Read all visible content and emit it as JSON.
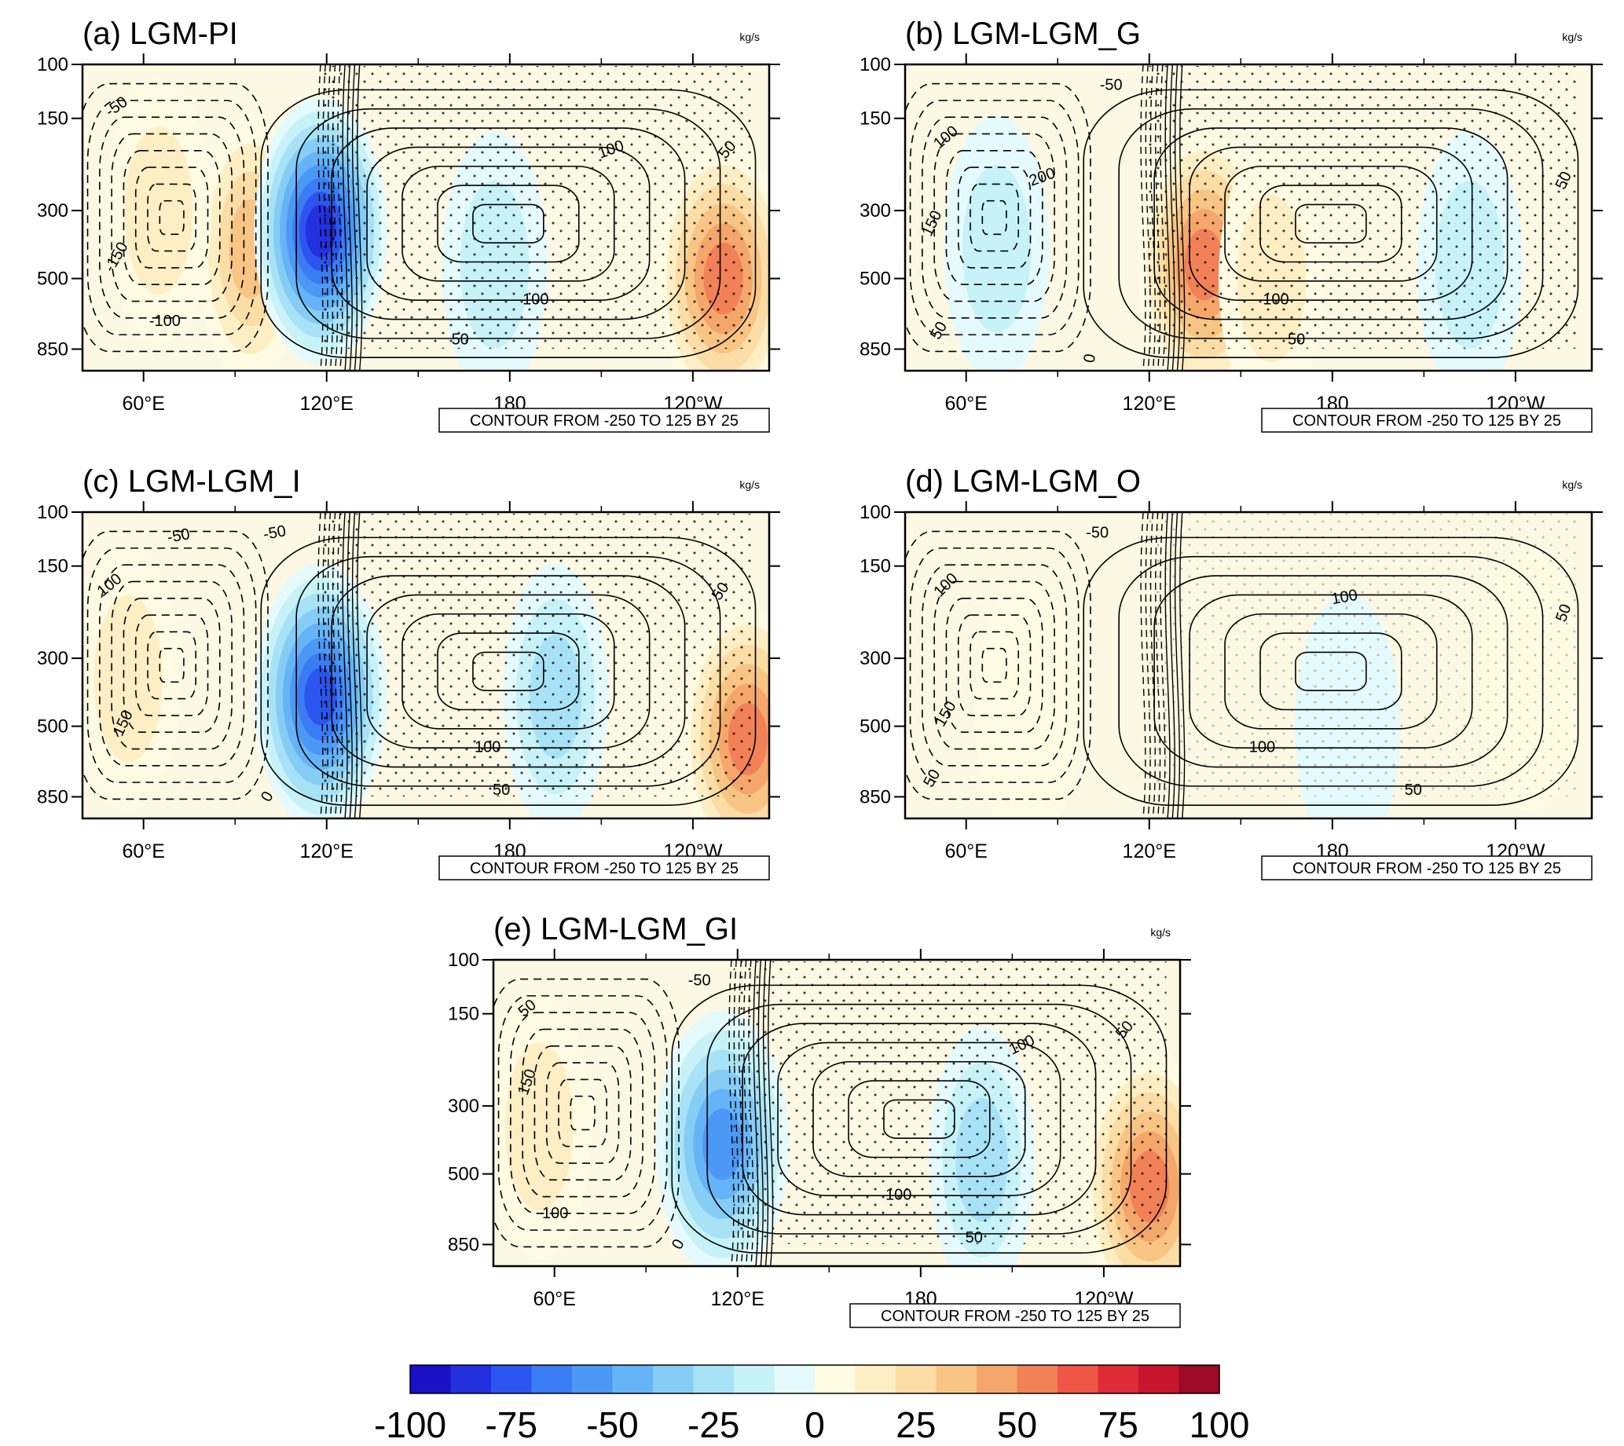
{
  "colors": {
    "scale": [
      "#1a10c8",
      "#2330e0",
      "#2b55ee",
      "#3a7cf3",
      "#4c98f5",
      "#66b4f7",
      "#86cdf6",
      "#a8e2f6",
      "#c6f2f8",
      "#e4fafc",
      "#fffbe3",
      "#fdeec4",
      "#fbdda5",
      "#f8c584",
      "#f5a66a",
      "#f28158",
      "#ee5545",
      "#e02a35",
      "#c8152e",
      "#9c0a25"
    ],
    "contour": "#000000"
  },
  "chart_data": [
    {
      "type": "heatmap",
      "title": "(a) LGM-PI",
      "units": "kg/s",
      "x_ticks": [
        "60°E",
        "120°E",
        "180",
        "120°W"
      ],
      "y_ticks": [
        "100",
        "150",
        "300",
        "500",
        "850"
      ],
      "x_range_degE": [
        40,
        265
      ],
      "ylabel": "",
      "contour_note": "CONTOUR FROM -250 TO 125 BY 25",
      "contour_labels": [
        "-50",
        "-150",
        "-100",
        "100",
        "50",
        "100",
        "50"
      ],
      "shading_features": [
        {
          "lon": 95,
          "p": 400,
          "value": 40
        },
        {
          "lon": 118,
          "p": 350,
          "value": -85
        },
        {
          "lon": 175,
          "p": 450,
          "value": -20
        },
        {
          "lon": 250,
          "p": 500,
          "value": 55
        },
        {
          "lon": 65,
          "p": 300,
          "value": 15
        }
      ]
    },
    {
      "type": "heatmap",
      "title": "(b) LGM-LGM_G",
      "units": "kg/s",
      "x_ticks": [
        "60°E",
        "120°E",
        "180",
        "120°W"
      ],
      "y_ticks": [
        "100",
        "150",
        "300",
        "500",
        "850"
      ],
      "x_range_degE": [
        40,
        265
      ],
      "ylabel": "",
      "contour_note": "CONTOUR FROM -250 TO 125 BY 25",
      "contour_labels": [
        "-50",
        "100",
        "200",
        "150",
        "50",
        "0",
        "100",
        "50",
        "50"
      ],
      "shading_features": [
        {
          "lon": 70,
          "p": 400,
          "value": -20
        },
        {
          "lon": 138,
          "p": 450,
          "value": 55
        },
        {
          "lon": 160,
          "p": 500,
          "value": 20
        },
        {
          "lon": 225,
          "p": 450,
          "value": -20
        }
      ]
    },
    {
      "type": "heatmap",
      "title": "(c) LGM-LGM_I",
      "units": "kg/s",
      "x_ticks": [
        "60°E",
        "120°E",
        "180",
        "120°W"
      ],
      "y_ticks": [
        "100",
        "150",
        "300",
        "500",
        "850"
      ],
      "x_range_degE": [
        40,
        265
      ],
      "ylabel": "",
      "contour_note": "CONTOUR FROM -250 TO 125 BY 25",
      "contour_labels": [
        "-50",
        "-50",
        "100",
        "150",
        "0",
        "50",
        "100",
        "50"
      ],
      "shading_features": [
        {
          "lon": 118,
          "p": 400,
          "value": -80
        },
        {
          "lon": 195,
          "p": 400,
          "value": -25
        },
        {
          "lon": 258,
          "p": 550,
          "value": 60
        },
        {
          "lon": 55,
          "p": 350,
          "value": 20
        }
      ]
    },
    {
      "type": "heatmap",
      "title": "(d) LGM-LGM_O",
      "units": "kg/s",
      "x_ticks": [
        "60°E",
        "120°E",
        "180",
        "120°W"
      ],
      "y_ticks": [
        "100",
        "150",
        "300",
        "500",
        "850"
      ],
      "x_range_degE": [
        40,
        265
      ],
      "ylabel": "",
      "contour_note": "CONTOUR FROM -250 TO 125 BY 25",
      "contour_labels": [
        "-50",
        "100",
        "150",
        "50",
        "100",
        "100",
        "50",
        "50"
      ],
      "shading_features": [
        {
          "lon": 80,
          "p": 450,
          "value": 8
        },
        {
          "lon": 185,
          "p": 500,
          "value": -10
        },
        {
          "lon": 245,
          "p": 350,
          "value": 8
        }
      ]
    },
    {
      "type": "heatmap",
      "title": "(e) LGM-LGM_GI",
      "units": "kg/s",
      "x_ticks": [
        "60°E",
        "120°E",
        "180",
        "120°W"
      ],
      "y_ticks": [
        "100",
        "150",
        "300",
        "500",
        "850"
      ],
      "x_range_degE": [
        40,
        265
      ],
      "ylabel": "",
      "contour_note": "CONTOUR FROM -250 TO 125 BY 25",
      "contour_labels": [
        "-50",
        "50",
        "150",
        "100",
        "0",
        "100",
        "100",
        "50",
        "50"
      ],
      "shading_features": [
        {
          "lon": 115,
          "p": 400,
          "value": -60
        },
        {
          "lon": 200,
          "p": 450,
          "value": -25
        },
        {
          "lon": 255,
          "p": 550,
          "value": 60
        },
        {
          "lon": 55,
          "p": 350,
          "value": 20
        }
      ]
    }
  ],
  "colorbar": {
    "type": "colorbar",
    "range": [
      -100,
      100
    ],
    "bins": 20,
    "labels": [
      "-100",
      "-75",
      "-50",
      "-25",
      "0",
      "25",
      "50",
      "75",
      "100"
    ]
  }
}
